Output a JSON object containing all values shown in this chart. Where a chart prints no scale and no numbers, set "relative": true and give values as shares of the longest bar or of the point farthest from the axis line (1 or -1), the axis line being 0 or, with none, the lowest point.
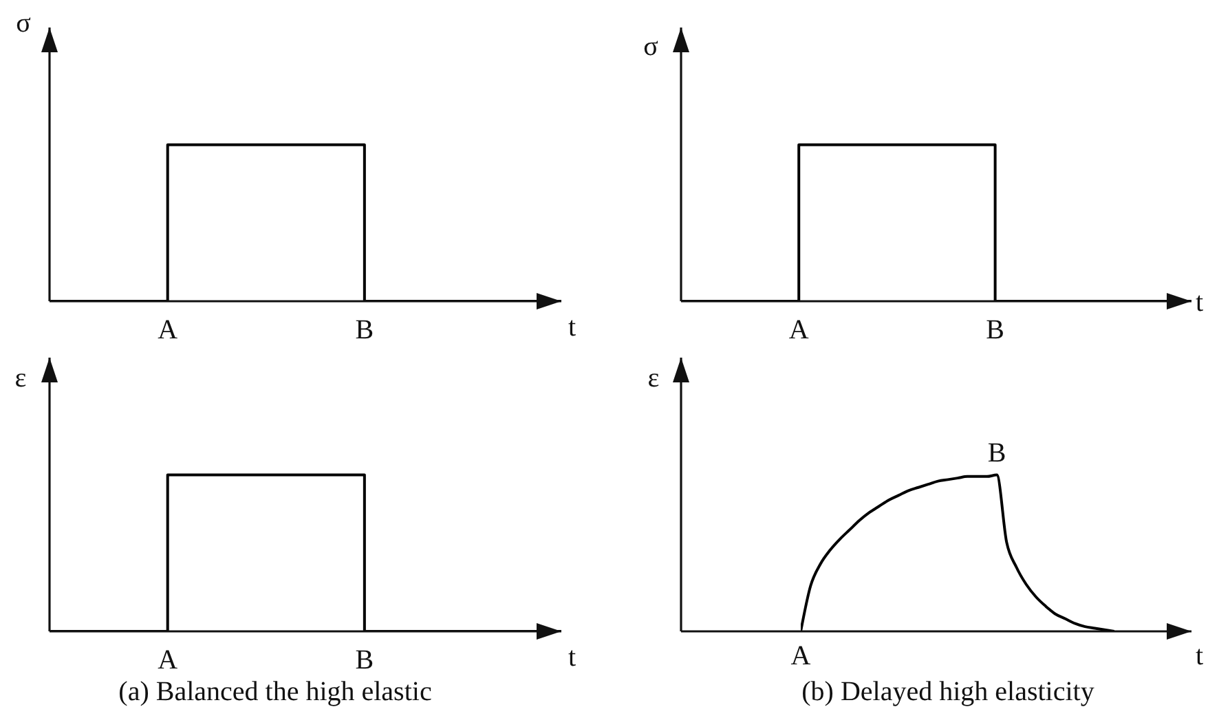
{
  "chart_data": [
    {
      "type": "step",
      "ylabel": "σ",
      "xlabel": "t",
      "relative": true,
      "tick_labels": "x",
      "categories": [
        null,
        null,
        null,
        null,
        null,
        null,
        null,
        null,
        null,
        null,
        null,
        null,
        "A",
        null,
        null,
        null,
        null,
        null,
        null,
        null,
        null,
        null,
        null,
        null,
        null,
        null,
        null,
        null,
        null,
        null,
        null,
        null,
        "B",
        null,
        null,
        null,
        null,
        null,
        null,
        null,
        null,
        null,
        null,
        null,
        null,
        null,
        null,
        null,
        null,
        null,
        null,
        null,
        null
      ],
      "series": [
        {
          "color": "#000000",
          "values": [
            0,
            0,
            0,
            0,
            0,
            0,
            0,
            0,
            0,
            0,
            0,
            0,
            1,
            1,
            1,
            1,
            1,
            1,
            1,
            1,
            1,
            1,
            1,
            1,
            1,
            1,
            1,
            1,
            1,
            1,
            1,
            1,
            0,
            0,
            0,
            0,
            0,
            0,
            0,
            0,
            0,
            0,
            0,
            0,
            0,
            0,
            0,
            0,
            0,
            0,
            0,
            0,
            0
          ]
        }
      ]
    },
    {
      "type": "step",
      "ylabel": "σ",
      "xlabel": "t",
      "relative": true,
      "tick_labels": "x",
      "categories": [
        null,
        null,
        null,
        null,
        null,
        null,
        null,
        null,
        null,
        null,
        null,
        null,
        "A",
        null,
        null,
        null,
        null,
        null,
        null,
        null,
        null,
        null,
        null,
        null,
        null,
        null,
        null,
        null,
        null,
        null,
        null,
        null,
        "B",
        null,
        null,
        null,
        null,
        null,
        null,
        null,
        null,
        null,
        null,
        null,
        null,
        null,
        null,
        null,
        null,
        null,
        null,
        null,
        null
      ],
      "series": [
        {
          "color": "#000000",
          "values": [
            0,
            0,
            0,
            0,
            0,
            0,
            0,
            0,
            0,
            0,
            0,
            0,
            1,
            1,
            1,
            1,
            1,
            1,
            1,
            1,
            1,
            1,
            1,
            1,
            1,
            1,
            1,
            1,
            1,
            1,
            1,
            1,
            0,
            0,
            0,
            0,
            0,
            0,
            0,
            0,
            0,
            0,
            0,
            0,
            0,
            0,
            0,
            0,
            0,
            0,
            0,
            0,
            0
          ]
        }
      ]
    },
    {
      "type": "step",
      "ylabel": "ε",
      "xlabel": "t",
      "relative": true,
      "tick_labels": "x",
      "categories": [
        null,
        null,
        null,
        null,
        null,
        null,
        null,
        null,
        null,
        null,
        null,
        null,
        "A",
        null,
        null,
        null,
        null,
        null,
        null,
        null,
        null,
        null,
        null,
        null,
        null,
        null,
        null,
        null,
        null,
        null,
        null,
        null,
        "B",
        null,
        null,
        null,
        null,
        null,
        null,
        null,
        null,
        null,
        null,
        null,
        null,
        null,
        null,
        null,
        null,
        null,
        null,
        null,
        null
      ],
      "series": [
        {
          "color": "#000000",
          "values": [
            0,
            0,
            0,
            0,
            0,
            0,
            0,
            0,
            0,
            0,
            0,
            0,
            1,
            1,
            1,
            1,
            1,
            1,
            1,
            1,
            1,
            1,
            1,
            1,
            1,
            1,
            1,
            1,
            1,
            1,
            1,
            1,
            0,
            0,
            0,
            0,
            0,
            0,
            0,
            0,
            0,
            0,
            0,
            0,
            0,
            0,
            0,
            0,
            0,
            0,
            0,
            0,
            0
          ]
        }
      ],
      "annotations": [
        "(a) Balanced the high elastic"
      ]
    },
    {
      "type": "line",
      "ylabel": "ε",
      "xlabel": "t",
      "relative": true,
      "tick_labels": false,
      "categories": [
        null,
        null,
        null,
        null,
        null,
        null,
        null,
        null,
        null,
        null,
        null,
        null,
        null,
        null,
        null,
        null,
        null,
        null,
        null,
        null,
        null,
        null,
        null,
        null,
        null,
        null,
        null,
        null,
        null,
        null,
        null,
        null,
        null
      ],
      "series": [
        {
          "color": "#000000",
          "values": [
            0,
            0.29,
            0.43,
            0.52,
            0.59,
            0.65,
            0.71,
            0.76,
            0.8,
            0.84,
            0.87,
            0.9,
            0.92,
            0.94,
            0.96,
            0.97,
            0.98,
            0.99,
            0.99,
            0.99,
            1,
            0.57,
            0.41,
            0.3,
            0.22,
            0.16,
            0.11,
            0.08,
            0.05,
            0.03,
            0.02,
            0.01,
            0
          ]
        }
      ],
      "annotations": [
        "A",
        "B",
        "(b) Delayed high elasticity"
      ]
    }
  ]
}
